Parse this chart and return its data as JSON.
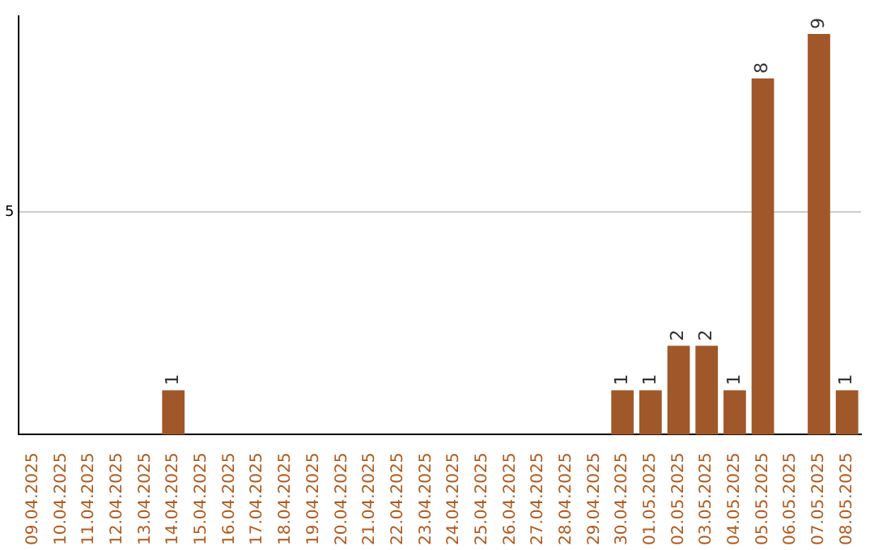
{
  "chart_data": {
    "type": "bar",
    "categories": [
      "09.04.2025",
      "10.04.2025",
      "11.04.2025",
      "12.04.2025",
      "13.04.2025",
      "14.04.2025",
      "15.04.2025",
      "16.04.2025",
      "17.04.2025",
      "18.04.2025",
      "19.04.2025",
      "20.04.2025",
      "21.04.2025",
      "22.04.2025",
      "23.04.2025",
      "24.04.2025",
      "25.04.2025",
      "26.04.2025",
      "27.04.2025",
      "28.04.2025",
      "29.04.2025",
      "30.04.2025",
      "01.05.2025",
      "02.05.2025",
      "03.05.2025",
      "04.05.2025",
      "05.05.2025",
      "06.05.2025",
      "07.05.2025",
      "08.05.2025"
    ],
    "values": [
      0,
      0,
      0,
      0,
      0,
      1,
      0,
      0,
      0,
      0,
      0,
      0,
      0,
      0,
      0,
      0,
      0,
      0,
      0,
      0,
      0,
      1,
      1,
      2,
      2,
      1,
      8,
      0,
      9,
      1
    ],
    "value_labels": [
      null,
      null,
      null,
      null,
      null,
      "1",
      null,
      null,
      null,
      null,
      null,
      null,
      null,
      null,
      null,
      null,
      null,
      null,
      null,
      null,
      null,
      "1",
      "1",
      "2",
      "2",
      "1",
      "8",
      null,
      "9",
      "1"
    ],
    "color": "#a0582a",
    "ylim": [
      0,
      9.4
    ],
    "yticks": [
      5
    ],
    "grid": "y",
    "legend": false
  }
}
